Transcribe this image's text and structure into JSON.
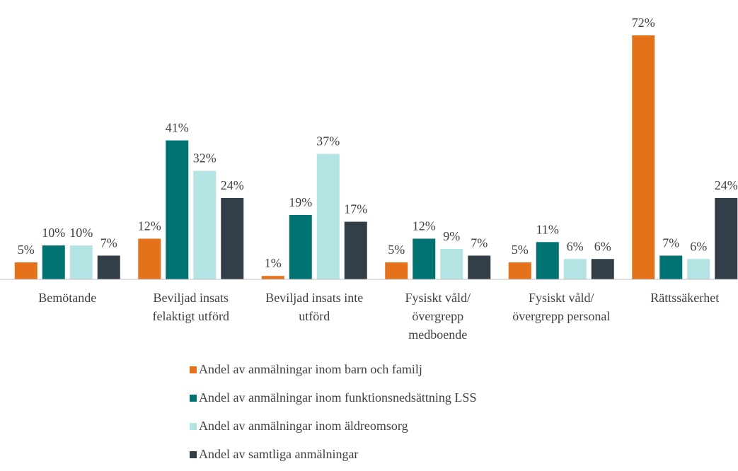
{
  "chart_data": {
    "type": "bar",
    "categories": [
      "Bemötande",
      "Beviljad insats felaktigt utförd",
      "Beviljad insats inte utförd",
      "Fysiskt våld/övergrepp medboende",
      "Fysiskt våld/övergrepp personal",
      "Rättssäkerhet"
    ],
    "series": [
      {
        "name": "Andel av anmälningar inom barn och familj",
        "color": "#e5711b",
        "values": [
          5,
          12,
          1,
          5,
          5,
          72
        ],
        "value_labels": [
          "5%",
          "12%",
          "1%",
          "5%",
          "5%",
          "72%"
        ]
      },
      {
        "name": "Andel av anmälningar inom funktionsnedsättning LSS",
        "color": "#007271",
        "values": [
          10,
          41,
          19,
          12,
          11,
          7
        ],
        "value_labels": [
          "10%",
          "41%",
          "19%",
          "12%",
          "11%",
          "7%"
        ]
      },
      {
        "name": "Andel av anmälningar inom äldreomsorg",
        "color": "#b3e4e3",
        "values": [
          10,
          32,
          37,
          9,
          6,
          6
        ],
        "value_labels": [
          "10%",
          "32%",
          "37%",
          "9%",
          "6%",
          "6%"
        ]
      },
      {
        "name": "Andel av samtliga anmälningar",
        "color": "#333f48",
        "values": [
          7,
          24,
          17,
          7,
          6,
          24
        ],
        "value_labels": [
          "7%",
          "24%",
          "17%",
          "7%",
          "6%",
          "24%"
        ]
      }
    ],
    "legend": "bottom"
  }
}
